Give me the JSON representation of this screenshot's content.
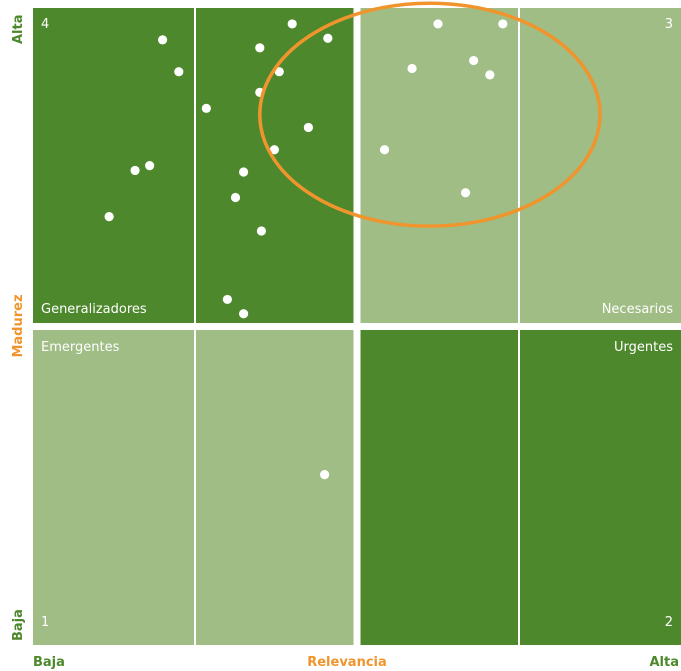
{
  "chart_data": {
    "type": "scatter",
    "title": "",
    "xlabel": "Relevancia",
    "ylabel": "Madurez",
    "x_low_label": "Baja",
    "x_high_label": "Alta",
    "y_low_label": "Baja",
    "y_high_label": "Alta",
    "xlim": [
      0,
      4
    ],
    "ylim": [
      0,
      4
    ],
    "grid": true,
    "quadrants": [
      {
        "number": "4",
        "name": "Generalizadores",
        "position": "top-left",
        "color": "#4d882c"
      },
      {
        "number": "3",
        "name": "Necesarios",
        "position": "top-right",
        "color": "#9fbd84"
      },
      {
        "number": "1",
        "name": "Emergentes",
        "position": "bottom-left",
        "color": "#9fbd84"
      },
      {
        "number": "2",
        "name": "Urgentes",
        "position": "bottom-right",
        "color": "#4d882c"
      }
    ],
    "points": [
      {
        "x": 0.8,
        "y": 3.8
      },
      {
        "x": 0.9,
        "y": 3.6
      },
      {
        "x": 1.07,
        "y": 3.37
      },
      {
        "x": 1.4,
        "y": 3.75
      },
      {
        "x": 1.52,
        "y": 3.6
      },
      {
        "x": 1.4,
        "y": 3.47
      },
      {
        "x": 1.6,
        "y": 3.9
      },
      {
        "x": 1.82,
        "y": 3.81
      },
      {
        "x": 0.63,
        "y": 2.98
      },
      {
        "x": 0.72,
        "y": 3.01
      },
      {
        "x": 1.3,
        "y": 2.97
      },
      {
        "x": 1.25,
        "y": 2.81
      },
      {
        "x": 0.47,
        "y": 2.69
      },
      {
        "x": 1.41,
        "y": 2.6
      },
      {
        "x": 1.2,
        "y": 2.17
      },
      {
        "x": 1.3,
        "y": 2.08
      },
      {
        "x": 1.49,
        "y": 3.11
      },
      {
        "x": 1.7,
        "y": 3.25
      },
      {
        "x": 2.5,
        "y": 3.9
      },
      {
        "x": 2.9,
        "y": 3.9
      },
      {
        "x": 2.34,
        "y": 3.62
      },
      {
        "x": 2.72,
        "y": 3.67
      },
      {
        "x": 2.82,
        "y": 3.58
      },
      {
        "x": 2.17,
        "y": 3.11
      },
      {
        "x": 2.67,
        "y": 2.84
      },
      {
        "x": 1.8,
        "y": 1.07
      }
    ],
    "highlight": {
      "shape": "ellipse",
      "cx": 2.45,
      "cy": 3.33,
      "rx": 1.05,
      "ry": 0.7,
      "color": "#f0952d"
    },
    "colors": {
      "dark_green": "#4d882c",
      "light_green": "#9fbd84",
      "orange": "#f0952d",
      "axis_green": "#4d882c",
      "point": "#ffffff"
    }
  }
}
